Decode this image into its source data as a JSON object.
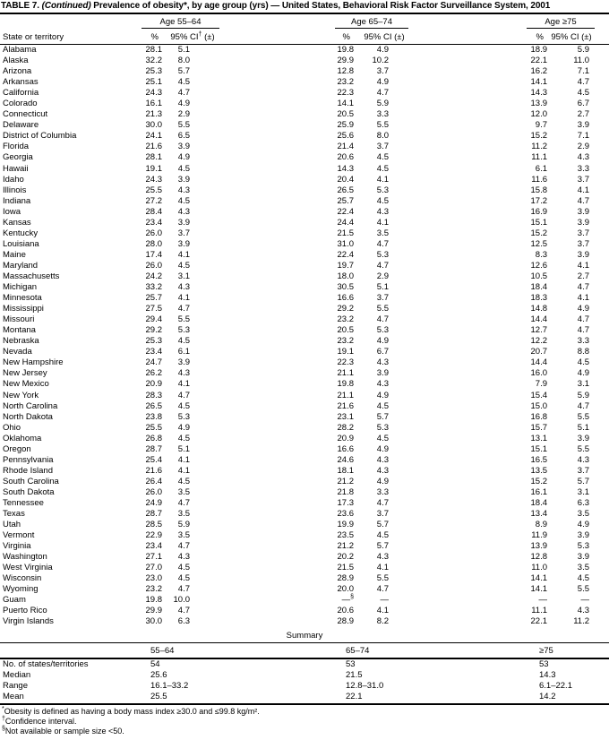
{
  "title": {
    "part1": "TABLE 7. ",
    "continued": "(Continued)",
    "part2": " Prevalence of obesity*, by age group (yrs) — United States, Behavioral Risk Factor Surveillance System, 2001"
  },
  "table": {
    "state_header": "State or territory",
    "groups": [
      {
        "label": "Age 55–64",
        "pct": "%",
        "ci_pre": "95% CI",
        "ci_sup": "†",
        "ci_post": " (±)"
      },
      {
        "label": "Age 65–74",
        "pct": "%",
        "ci_pre": "95% CI",
        "ci_sup": "",
        "ci_post": " (±)"
      },
      {
        "label": "Age ≥75",
        "pct": "%",
        "ci_pre": "95% CI",
        "ci_sup": "",
        "ci_post": " (±)"
      }
    ],
    "rows": [
      [
        "Alabama",
        "28.1",
        "5.1",
        "19.8",
        "4.9",
        "18.9",
        "5.9"
      ],
      [
        "Alaska",
        "32.2",
        "8.0",
        "29.9",
        "10.2",
        "22.1",
        "11.0"
      ],
      [
        "Arizona",
        "25.3",
        "5.7",
        "12.8",
        "3.7",
        "16.2",
        "7.1"
      ],
      [
        "Arkansas",
        "25.1",
        "4.5",
        "23.2",
        "4.9",
        "14.1",
        "4.7"
      ],
      [
        "California",
        "24.3",
        "4.7",
        "22.3",
        "4.7",
        "14.3",
        "4.5"
      ],
      [
        "Colorado",
        "16.1",
        "4.9",
        "14.1",
        "5.9",
        "13.9",
        "6.7"
      ],
      [
        "Connecticut",
        "21.3",
        "2.9",
        "20.5",
        "3.3",
        "12.0",
        "2.7"
      ],
      [
        "Delaware",
        "30.0",
        "5.5",
        "25.9",
        "5.5",
        "9.7",
        "3.9"
      ],
      [
        "District of Columbia",
        "24.1",
        "6.5",
        "25.6",
        "8.0",
        "15.2",
        "7.1"
      ],
      [
        "Florida",
        "21.6",
        "3.9",
        "21.4",
        "3.7",
        "11.2",
        "2.9"
      ],
      [
        "Georgia",
        "28.1",
        "4.9",
        "20.6",
        "4.5",
        "11.1",
        "4.3"
      ],
      [
        "Hawaii",
        "19.1",
        "4.5",
        "14.3",
        "4.5",
        "6.1",
        "3.3"
      ],
      [
        "Idaho",
        "24.3",
        "3.9",
        "20.4",
        "4.1",
        "11.6",
        "3.7"
      ],
      [
        "Illinois",
        "25.5",
        "4.3",
        "26.5",
        "5.3",
        "15.8",
        "4.1"
      ],
      [
        "Indiana",
        "27.2",
        "4.5",
        "25.7",
        "4.5",
        "17.2",
        "4.7"
      ],
      [
        "Iowa",
        "28.4",
        "4.3",
        "22.4",
        "4.3",
        "16.9",
        "3.9"
      ],
      [
        "Kansas",
        "23.4",
        "3.9",
        "24.4",
        "4.1",
        "15.1",
        "3.9"
      ],
      [
        "Kentucky",
        "26.0",
        "3.7",
        "21.5",
        "3.5",
        "15.2",
        "3.7"
      ],
      [
        "Louisiana",
        "28.0",
        "3.9",
        "31.0",
        "4.7",
        "12.5",
        "3.7"
      ],
      [
        "Maine",
        "17.4",
        "4.1",
        "22.4",
        "5.3",
        "8.3",
        "3.9"
      ],
      [
        "Maryland",
        "26.0",
        "4.5",
        "19.7",
        "4.7",
        "12.6",
        "4.1"
      ],
      [
        "Massachusetts",
        "24.2",
        "3.1",
        "18.0",
        "2.9",
        "10.5",
        "2.7"
      ],
      [
        "Michigan",
        "33.2",
        "4.3",
        "30.5",
        "5.1",
        "18.4",
        "4.7"
      ],
      [
        "Minnesota",
        "25.7",
        "4.1",
        "16.6",
        "3.7",
        "18.3",
        "4.1"
      ],
      [
        "Mississippi",
        "27.5",
        "4.7",
        "29.2",
        "5.5",
        "14.8",
        "4.9"
      ],
      [
        "Missouri",
        "29.4",
        "5.5",
        "23.2",
        "4.7",
        "14.4",
        "4.7"
      ],
      [
        "Montana",
        "29.2",
        "5.3",
        "20.5",
        "5.3",
        "12.7",
        "4.7"
      ],
      [
        "Nebraska",
        "25.3",
        "4.5",
        "23.2",
        "4.9",
        "12.2",
        "3.3"
      ],
      [
        "Nevada",
        "23.4",
        "6.1",
        "19.1",
        "6.7",
        "20.7",
        "8.8"
      ],
      [
        "New Hampshire",
        "24.7",
        "3.9",
        "22.3",
        "4.3",
        "14.4",
        "4.5"
      ],
      [
        "New Jersey",
        "26.2",
        "4.3",
        "21.1",
        "3.9",
        "16.0",
        "4.9"
      ],
      [
        "New Mexico",
        "20.9",
        "4.1",
        "19.8",
        "4.3",
        "7.9",
        "3.1"
      ],
      [
        "New York",
        "28.3",
        "4.7",
        "21.1",
        "4.9",
        "15.4",
        "5.9"
      ],
      [
        "North Carolina",
        "26.5",
        "4.5",
        "21.6",
        "4.5",
        "15.0",
        "4.7"
      ],
      [
        "North Dakota",
        "23.8",
        "5.3",
        "23.1",
        "5.7",
        "16.8",
        "5.5"
      ],
      [
        "Ohio",
        "25.5",
        "4.9",
        "28.2",
        "5.3",
        "15.7",
        "5.1"
      ],
      [
        "Oklahoma",
        "26.8",
        "4.5",
        "20.9",
        "4.5",
        "13.1",
        "3.9"
      ],
      [
        "Oregon",
        "28.7",
        "5.1",
        "16.6",
        "4.9",
        "15.1",
        "5.5"
      ],
      [
        "Pennsylvania",
        "25.4",
        "4.1",
        "24.6",
        "4.3",
        "16.5",
        "4.3"
      ],
      [
        "Rhode Island",
        "21.6",
        "4.1",
        "18.1",
        "4.3",
        "13.5",
        "3.7"
      ],
      [
        "South Carolina",
        "26.4",
        "4.5",
        "21.2",
        "4.9",
        "15.2",
        "5.7"
      ],
      [
        "South Dakota",
        "26.0",
        "3.5",
        "21.8",
        "3.3",
        "16.1",
        "3.1"
      ],
      [
        "Tennessee",
        "24.9",
        "4.7",
        "17.3",
        "4.7",
        "18.4",
        "6.3"
      ],
      [
        "Texas",
        "28.7",
        "3.5",
        "23.6",
        "3.7",
        "13.4",
        "3.5"
      ],
      [
        "Utah",
        "28.5",
        "5.9",
        "19.9",
        "5.7",
        "8.9",
        "4.9"
      ],
      [
        "Vermont",
        "22.9",
        "3.5",
        "23.5",
        "4.5",
        "11.9",
        "3.9"
      ],
      [
        "Virginia",
        "23.4",
        "4.7",
        "21.2",
        "5.7",
        "13.9",
        "5.3"
      ],
      [
        "Washington",
        "27.1",
        "4.3",
        "20.2",
        "4.3",
        "12.8",
        "3.9"
      ],
      [
        "West Virginia",
        "27.0",
        "4.5",
        "21.5",
        "4.1",
        "11.0",
        "3.5"
      ],
      [
        "Wisconsin",
        "23.0",
        "4.5",
        "28.9",
        "5.5",
        "14.1",
        "4.5"
      ],
      [
        "Wyoming",
        "23.2",
        "4.7",
        "20.0",
        "4.7",
        "14.1",
        "5.5"
      ],
      [
        "Guam",
        "19.8",
        "10.0",
        "—§",
        "—",
        "—",
        "—"
      ],
      [
        "Puerto Rico",
        "29.9",
        "4.7",
        "20.6",
        "4.1",
        "11.1",
        "4.3"
      ],
      [
        "Virgin Islands",
        "30.0",
        "6.3",
        "28.9",
        "8.2",
        "22.1",
        "11.2"
      ]
    ]
  },
  "summary": {
    "title": "Summary",
    "col_headers": [
      "55–64",
      "65–74",
      "≥75"
    ],
    "rows": [
      {
        "label": "No. of states/territories",
        "values": [
          "54",
          "53",
          "53"
        ]
      },
      {
        "label": "Median",
        "values": [
          "25.6",
          "21.5",
          "14.3"
        ]
      },
      {
        "label": "Range",
        "values": [
          "16.1–33.2",
          "12.8–31.0",
          "6.1–22.1"
        ]
      },
      {
        "label": "Mean",
        "values": [
          "25.5",
          "22.1",
          "14.2"
        ]
      }
    ]
  },
  "footnotes": [
    {
      "mark": "*",
      "text": "Obesity is defined as having a body mass index ≥30.0 and ≤99.8 kg/m²."
    },
    {
      "mark": "†",
      "text": "Confidence interval."
    },
    {
      "mark": "§",
      "text": "Not available or sample size <50."
    }
  ]
}
